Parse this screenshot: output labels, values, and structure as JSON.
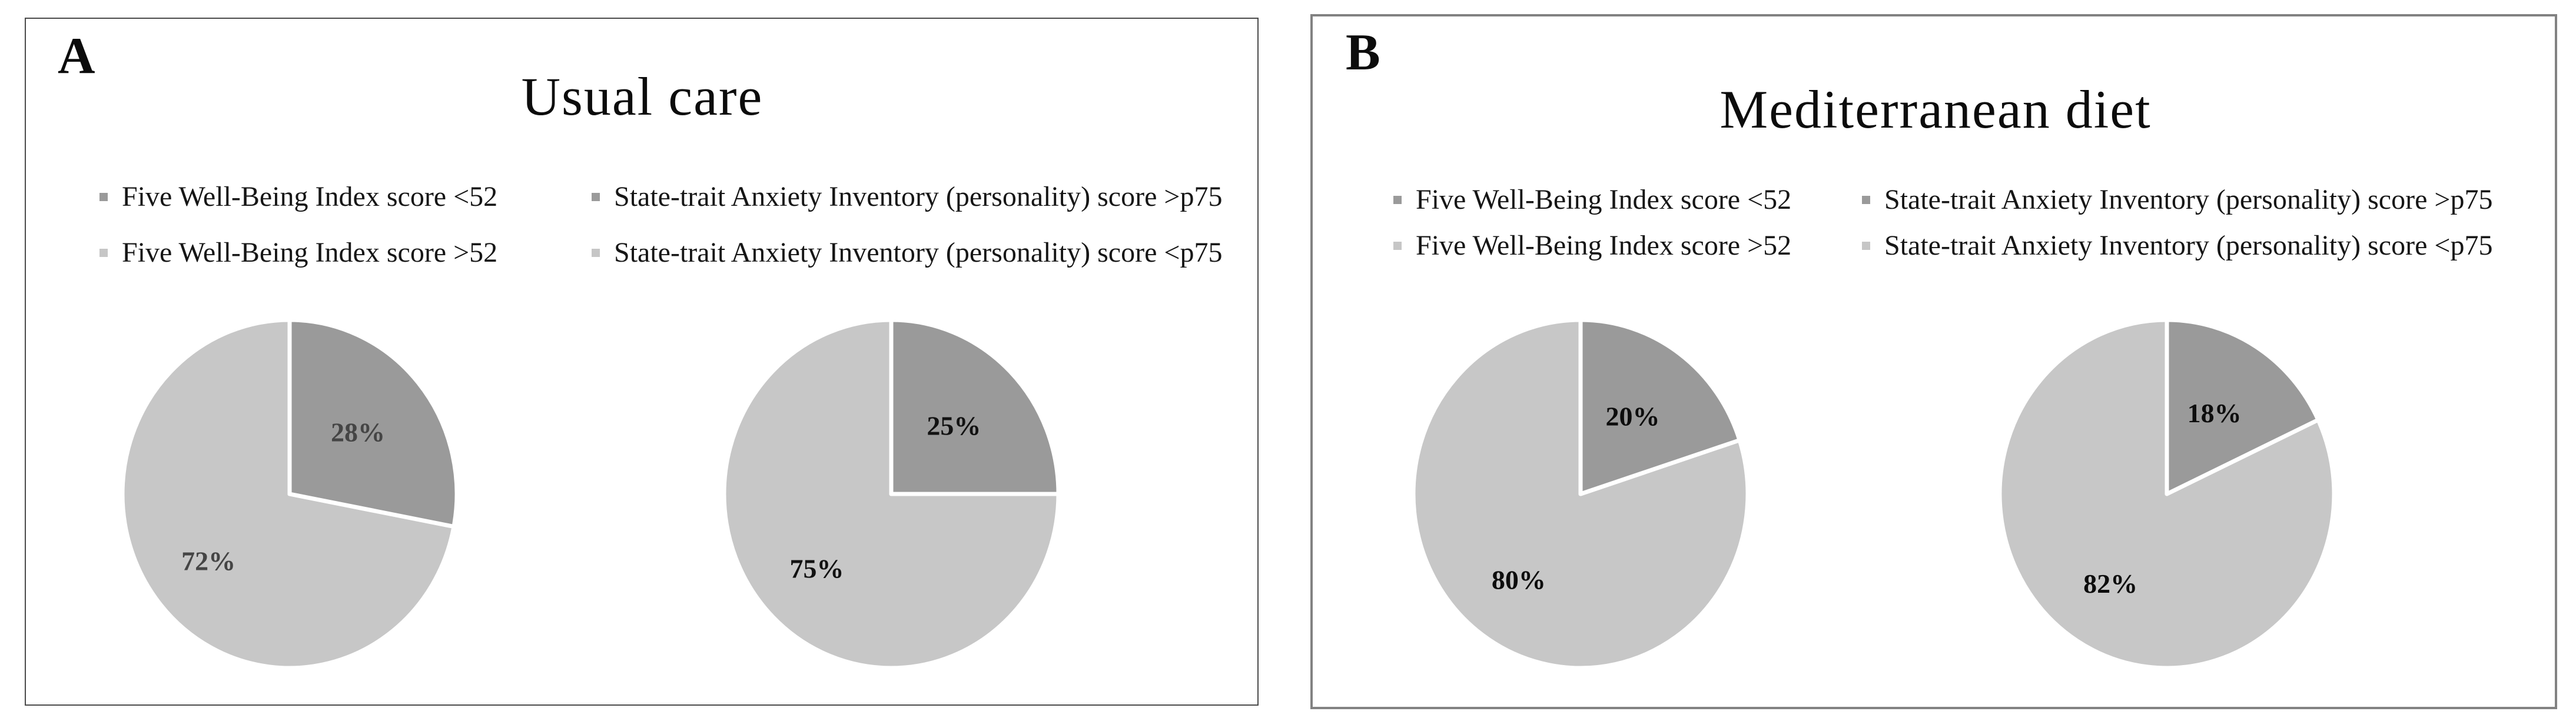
{
  "figure": {
    "background": "#ffffff",
    "panel_border_color_a": "#4a4a4a",
    "panel_border_color_b": "#828282"
  },
  "colors": {
    "slice_dark": "#9a9a9a",
    "slice_light": "#c7c7c7",
    "swatch_dark": "#9a9a9a",
    "swatch_light": "#c6c6c6"
  },
  "panels": [
    {
      "letter": "A",
      "title": "Usual care",
      "legend": [
        {
          "label": "Five Well-Being Index score <52",
          "swatch": "#9a9a9a"
        },
        {
          "label": "Five Well-Being Index score >52",
          "swatch": "#c6c6c6"
        },
        {
          "label": "State-trait Anxiety Inventory (personality) score >p75",
          "swatch": "#9a9a9a"
        },
        {
          "label": "State-trait Anxiety Inventory (personality) score <p75",
          "swatch": "#c6c6c6"
        }
      ]
    },
    {
      "letter": "B",
      "title": "Mediterranean diet",
      "legend": [
        {
          "label": "Five Well-Being Index score <52",
          "swatch": "#9a9a9a"
        },
        {
          "label": "Five Well-Being Index score >52",
          "swatch": "#c6c6c6"
        },
        {
          "label": "State-trait Anxiety Inventory (personality) score >p75",
          "swatch": "#9a9a9a"
        },
        {
          "label": "State-trait Anxiety Inventory (personality) score <p75",
          "swatch": "#c6c6c6"
        }
      ]
    }
  ],
  "chart_data": [
    {
      "type": "pie",
      "panel": "A",
      "name": "pie-usual-care-wellbeing",
      "categories": [
        "Five Well-Being Index score <52",
        "Five Well-Being Index score >52"
      ],
      "values": [
        28,
        72
      ],
      "data_labels": [
        "28%",
        "72%"
      ],
      "slice_colors": [
        "#9a9a9a",
        "#c7c7c7"
      ],
      "label_color": "#454545",
      "start_angle_deg": 0,
      "direction": "clockwise",
      "legend_position": "top"
    },
    {
      "type": "pie",
      "panel": "A",
      "name": "pie-usual-care-anxiety",
      "categories": [
        "State-trait Anxiety Inventory (personality) score >p75",
        "State-trait Anxiety Inventory (personality) score <p75"
      ],
      "values": [
        25,
        75
      ],
      "data_labels": [
        "25%",
        "75%"
      ],
      "slice_colors": [
        "#9a9a9a",
        "#c7c7c7"
      ],
      "label_color": "#121212",
      "start_angle_deg": 0,
      "direction": "clockwise",
      "legend_position": "top"
    },
    {
      "type": "pie",
      "panel": "B",
      "name": "pie-mediterranean-wellbeing",
      "categories": [
        "Five Well-Being Index score <52",
        "Five Well-Being Index score >52"
      ],
      "values": [
        20,
        80
      ],
      "data_labels": [
        "20%",
        "80%"
      ],
      "slice_colors": [
        "#9a9a9a",
        "#c7c7c7"
      ],
      "label_color": "#0d0d0d",
      "start_angle_deg": 0,
      "direction": "clockwise",
      "legend_position": "top"
    },
    {
      "type": "pie",
      "panel": "B",
      "name": "pie-mediterranean-anxiety",
      "categories": [
        "State-trait Anxiety Inventory (personality) score >p75",
        "State-trait Anxiety Inventory (personality) score <p75"
      ],
      "values": [
        18,
        82
      ],
      "data_labels": [
        "18%",
        "82%"
      ],
      "slice_colors": [
        "#9a9a9a",
        "#c7c7c7"
      ],
      "label_color": "#0d0d0d",
      "start_angle_deg": 0,
      "direction": "clockwise",
      "legend_position": "top"
    }
  ]
}
